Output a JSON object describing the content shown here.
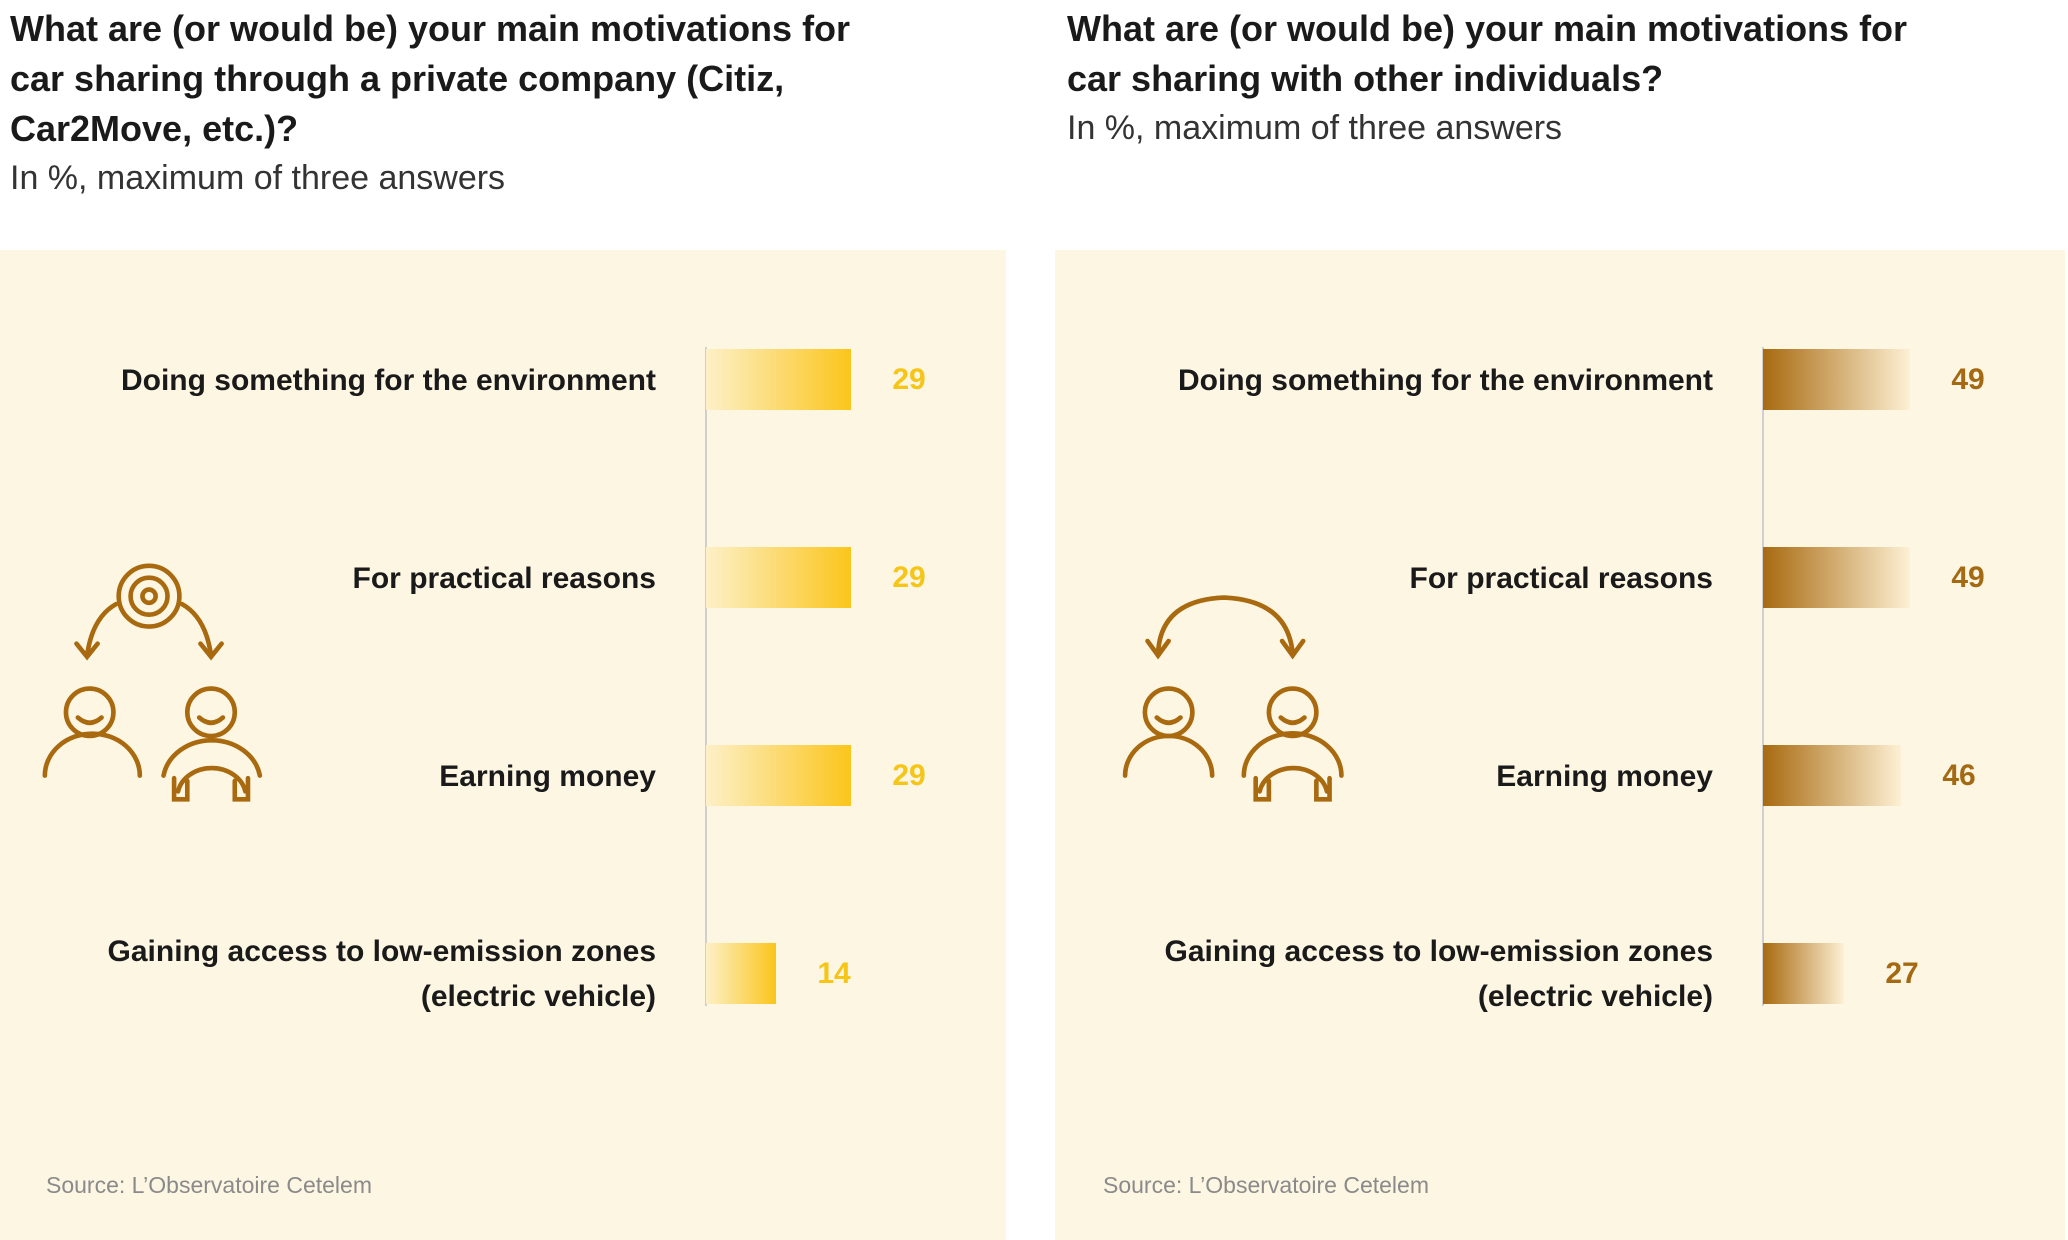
{
  "chart_data": [
    {
      "type": "bar",
      "orientation": "horizontal",
      "title": "What are (or would be) your main motivations for car sharing through a private company (Citiz, Car2Move, etc.)?",
      "subtitle": "In %, maximum of three answers",
      "categories": [
        "Doing something for the environment",
        "For practical reasons",
        "Earning money",
        "Gaining access to low-emission zones\n(electric vehicle)"
      ],
      "values": [
        29,
        29,
        29,
        14
      ],
      "color": "#f5c518",
      "gradient": [
        "#fdf0c8",
        "#fbc51b"
      ],
      "xlim": [
        0,
        60
      ],
      "source": "Source: L’Observatoire Cetelem"
    },
    {
      "type": "bar",
      "orientation": "horizontal",
      "title": "What are (or would be) your main motivations for car sharing with other individuals?",
      "subtitle": "In %, maximum of three answers",
      "categories": [
        "Doing something for the environment",
        "For practical reasons",
        "Earning money",
        "Gaining access to low-emission zones\n(electric vehicle)"
      ],
      "values": [
        49,
        49,
        46,
        27
      ],
      "color": "#a46a13",
      "gradient": [
        "#a86a10",
        "#fdf0d4"
      ],
      "xlim": [
        0,
        100
      ],
      "source": "Source: L’Observatoire Cetelem"
    }
  ]
}
